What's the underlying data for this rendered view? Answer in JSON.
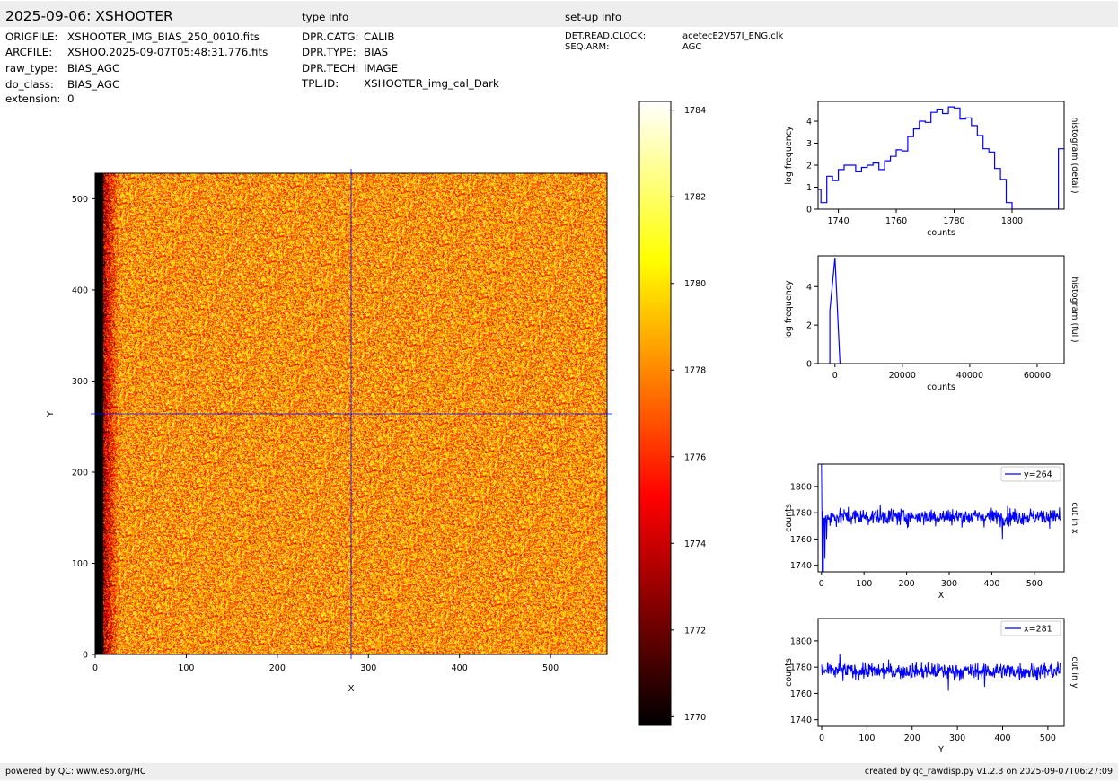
{
  "header": {
    "title": "2025-09-06: XSHOOTER",
    "type_info_label": "type info",
    "setup_info_label": "set-up info"
  },
  "file_info": [
    {
      "key": "ORIGFILE:",
      "value": "XSHOOTER_IMG_BIAS_250_0010.fits"
    },
    {
      "key": "ARCFILE:",
      "value": "XSHOO.2025-09-07T05:48:31.776.fits"
    },
    {
      "key": "raw_type:",
      "value": "BIAS_AGC"
    },
    {
      "key": "do_class:",
      "value": "BIAS_AGC"
    },
    {
      "key": "extension:",
      "value": "0"
    }
  ],
  "type_info": [
    {
      "key": "DPR.CATG:",
      "value": "CALIB"
    },
    {
      "key": "DPR.TYPE:",
      "value": "BIAS"
    },
    {
      "key": "DPR.TECH:",
      "value": "IMAGE"
    },
    {
      "key": "TPL.ID:",
      "value": "XSHOOTER_img_cal_Dark"
    }
  ],
  "setup_info": [
    {
      "key": "DET.READ.CLOCK:",
      "value": "acetecE2V57I_ENG.clk"
    },
    {
      "key": "SEQ.ARM:",
      "value": "AGC"
    }
  ],
  "footer": {
    "left": "powered by QC: www.eso.org/HC",
    "right": "created by qc_rawdisp.py v1.2.3 on 2025-09-07T06:27:09"
  },
  "colors": {
    "cut_line": "#0000ff",
    "histogram": "#0000ff",
    "bar_bg": "#eeeeee"
  },
  "chart_data": [
    {
      "type": "heatmap",
      "name": "image",
      "xlabel": "X",
      "ylabel": "Y",
      "xlim": [
        0,
        562
      ],
      "ylim": [
        0,
        528
      ],
      "xticks": [
        0,
        100,
        200,
        300,
        400,
        500
      ],
      "yticks": [
        0,
        100,
        200,
        300,
        400,
        500
      ],
      "crosshair": {
        "x": 281,
        "y": 264
      },
      "colormap": "hot",
      "dark_columns": [
        0,
        8
      ]
    },
    {
      "type": "colorbar",
      "range": [
        1769.8,
        1784.2
      ],
      "ticks": [
        1770,
        1772,
        1774,
        1776,
        1778,
        1780,
        1782,
        1784
      ]
    },
    {
      "type": "line",
      "name": "histogram-detail",
      "xlabel": "counts",
      "ylabel": "log frequency",
      "side_label": "histogram (detail)",
      "xlim": [
        1733,
        1818
      ],
      "ylim": [
        0,
        4.9
      ],
      "xticks": [
        1740,
        1760,
        1780,
        1800
      ],
      "yticks": [
        0,
        1,
        2,
        3,
        4
      ],
      "x": [
        1733,
        1735,
        1737,
        1739,
        1741,
        1743,
        1745,
        1747,
        1749,
        1751,
        1753,
        1755,
        1757,
        1759,
        1761,
        1763,
        1765,
        1767,
        1769,
        1771,
        1773,
        1775,
        1777,
        1779,
        1781,
        1783,
        1785,
        1787,
        1789,
        1791,
        1793,
        1795,
        1797,
        1799,
        1801,
        1803,
        1805,
        1807,
        1809,
        1811,
        1813,
        1815,
        1817
      ],
      "y": [
        0.9,
        0.3,
        1.5,
        1.3,
        1.8,
        2.0,
        2.0,
        1.7,
        1.9,
        2.0,
        2.1,
        1.8,
        2.2,
        2.4,
        2.7,
        2.65,
        3.3,
        3.65,
        4.0,
        3.95,
        4.4,
        4.55,
        4.35,
        4.65,
        4.6,
        4.1,
        4.15,
        3.8,
        3.35,
        2.75,
        2.6,
        1.85,
        1.35,
        0.3,
        0,
        0,
        0,
        0,
        0,
        0,
        0,
        0,
        2.75
      ]
    },
    {
      "type": "line",
      "name": "histogram-full",
      "xlabel": "counts",
      "ylabel": "log frequency",
      "side_label": "histogram (full)",
      "xlim": [
        -5000,
        68000
      ],
      "ylim": [
        0,
        5.6
      ],
      "xticks": [
        0,
        20000,
        40000,
        60000
      ],
      "yticks": [
        0,
        2,
        4
      ],
      "x": [
        -1500,
        -1500,
        -1500,
        0,
        0,
        1500,
        1500
      ],
      "y": [
        0,
        2.75,
        2.75,
        5.5,
        5.5,
        0,
        0
      ]
    },
    {
      "type": "line",
      "name": "cut-x",
      "xlabel": "X",
      "ylabel": "counts",
      "side_label": "cut in x",
      "legend": "y=264",
      "xlim": [
        -8,
        570
      ],
      "ylim": [
        1735,
        1817
      ],
      "xticks": [
        0,
        100,
        200,
        300,
        400,
        500
      ],
      "yticks": [
        1740,
        1760,
        1780,
        1800
      ],
      "length": 562,
      "mean": 1777,
      "noise": 4.5,
      "spikes": [
        [
          0,
          1817
        ],
        [
          2,
          1720
        ],
        [
          4,
          1710
        ],
        [
          8,
          1745
        ],
        [
          12,
          1760
        ],
        [
          20,
          1770
        ],
        [
          425,
          1760
        ]
      ]
    },
    {
      "type": "line",
      "name": "cut-y",
      "xlabel": "Y",
      "ylabel": "counts",
      "side_label": "cut in y",
      "legend": "x=281",
      "xlim": [
        -8,
        536
      ],
      "ylim": [
        1735,
        1817
      ],
      "xticks": [
        0,
        100,
        200,
        300,
        400,
        500
      ],
      "yticks": [
        1740,
        1760,
        1780,
        1800
      ],
      "length": 528,
      "mean": 1777,
      "noise": 4.5,
      "spikes": [
        [
          40,
          1790
        ],
        [
          280,
          1762
        ],
        [
          360,
          1765
        ]
      ]
    }
  ]
}
